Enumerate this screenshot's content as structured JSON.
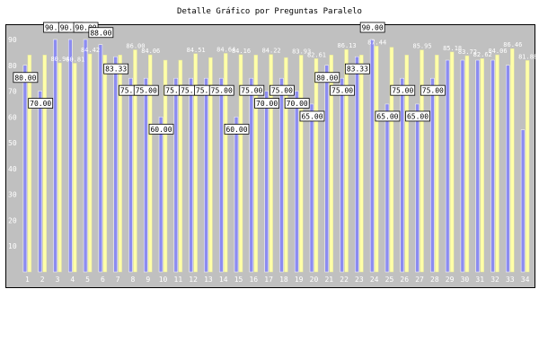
{
  "chart_data": {
    "type": "bar",
    "title": "Detalle Gráfico por Preguntas Paralelo",
    "xlabel": "",
    "ylabel": "",
    "ylim": [
      0,
      90
    ],
    "yticks": [
      10,
      20,
      30,
      40,
      50,
      60,
      70,
      80,
      90
    ],
    "grid": false,
    "categories": [
      "1",
      "2",
      "3",
      "4",
      "5",
      "6",
      "7",
      "8",
      "9",
      "10",
      "11",
      "12",
      "13",
      "14",
      "15",
      "16",
      "17",
      "18",
      "19",
      "20",
      "21",
      "22",
      "23",
      "24",
      "25",
      "26",
      "27",
      "28",
      "29",
      "30",
      "31",
      "32",
      "33",
      "34"
    ],
    "series": [
      {
        "color": "#8c8cf0",
        "values": [
          80.0,
          70.0,
          90.0,
          90.0,
          90.0,
          88.0,
          83.33,
          75.0,
          75.0,
          60.0,
          75.0,
          75.0,
          75.0,
          75.0,
          60.0,
          75.0,
          70.0,
          75.0,
          70.0,
          65.0,
          80.0,
          75.0,
          83.33,
          90.0,
          65.0,
          75.0,
          65.0,
          75.0,
          82.0,
          82.0,
          82.0,
          82.0,
          80.0,
          55.0
        ],
        "labels": [
          "80.00",
          "70.00",
          "90.00",
          "90.00",
          "90.00",
          "88.00",
          "83.33",
          "75.00",
          "75.00",
          "60.00",
          "75.00",
          "75.00",
          "75.00",
          "75.00",
          "60.00",
          "75.00",
          "70.00",
          "75.00",
          "70.00",
          "65.00",
          "80.00",
          "75.00",
          "83.33",
          "90.00",
          "65.00",
          "75.00",
          "65.00",
          "75.00",
          "",
          "",
          "",
          "",
          "",
          ""
        ]
      },
      {
        "color": "#ffffa8",
        "values": [
          84.0,
          84.0,
          80.94,
          80.81,
          84.42,
          84.0,
          84.0,
          86.0,
          84.06,
          82.0,
          82.0,
          84.51,
          83.0,
          84.64,
          84.16,
          84.0,
          84.22,
          83.0,
          83.93,
          82.61,
          84.0,
          86.13,
          84.0,
          87.44,
          87.0,
          84.0,
          85.95,
          84.0,
          85.18,
          83.72,
          82.62,
          84.06,
          86.46,
          81.88
        ],
        "labels": [
          "",
          "",
          "80.94",
          "80.81",
          "84.42",
          "",
          "",
          "86.00",
          "84.06",
          "",
          "",
          "84.51",
          "",
          "84.64",
          "84.16",
          "",
          "84.22",
          "",
          "83.93",
          "82.61",
          "",
          "86.13",
          "",
          "87.44",
          "",
          "",
          "85.95",
          "",
          "85.18",
          "83.72",
          "82.62",
          "84.06",
          "86.46",
          "81.88"
        ]
      }
    ]
  }
}
